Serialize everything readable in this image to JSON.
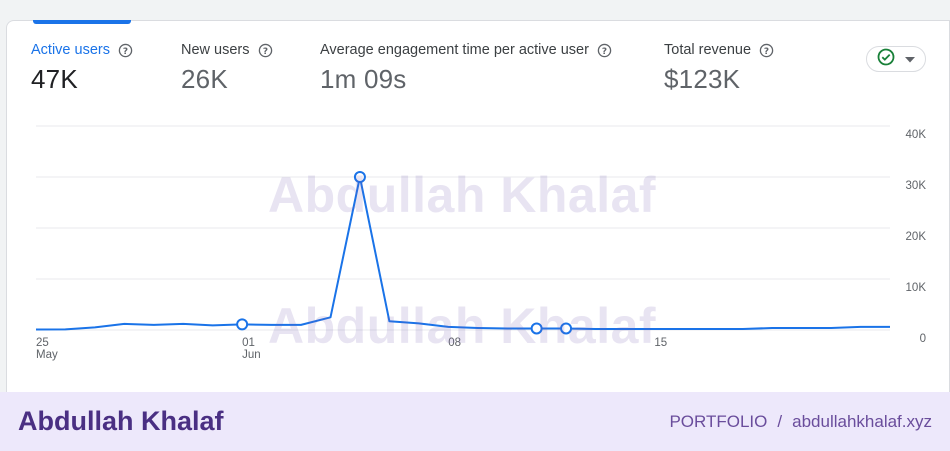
{
  "metrics": [
    {
      "label": "Active users",
      "value": "47K",
      "active": true
    },
    {
      "label": "New users",
      "value": "26K",
      "active": false
    },
    {
      "label": "Average engagement time per active user",
      "value": "1m 09s",
      "active": false
    },
    {
      "label": "Total revenue",
      "value": "$123K",
      "active": false
    }
  ],
  "compare_control": {
    "status_icon": "check-circle-icon",
    "menu_icon": "caret-down-icon"
  },
  "chart_data": {
    "type": "line",
    "x_tick_labels": [
      {
        "day": "25",
        "month": "May"
      },
      {
        "day": "01",
        "month": "Jun"
      },
      {
        "day": "08",
        "month": ""
      },
      {
        "day": "15",
        "month": ""
      }
    ],
    "y_tick_labels": [
      "0",
      "10K",
      "20K",
      "30K",
      "40K"
    ],
    "ylim": [
      0,
      40000
    ],
    "y_axis_position": "right",
    "grid": true,
    "series": [
      {
        "color": "#1a73e8",
        "x": [
          "May 25",
          "May 26",
          "May 27",
          "May 28",
          "May 29",
          "May 30",
          "May 31",
          "Jun 01",
          "Jun 02",
          "Jun 03",
          "Jun 04",
          "Jun 05",
          "Jun 06",
          "Jun 07",
          "Jun 08",
          "Jun 09",
          "Jun 10",
          "Jun 11",
          "Jun 12",
          "Jun 13",
          "Jun 14",
          "Jun 15",
          "Jun 16",
          "Jun 17",
          "Jun 18",
          "Jun 19",
          "Jun 20",
          "Jun 21",
          "Jun 22",
          "Jun 23"
        ],
        "values": [
          100,
          120,
          500,
          1200,
          1000,
          1200,
          900,
          1100,
          1000,
          1000,
          2500,
          30000,
          1700,
          1300,
          600,
          400,
          300,
          300,
          300,
          200,
          200,
          200,
          200,
          200,
          200,
          400,
          400,
          400,
          600,
          600
        ],
        "highlighted_points": [
          "Jun 01",
          "Jun 05",
          "Jun 11",
          "Jun 12"
        ]
      }
    ]
  },
  "watermark": "Abdullah Khalaf",
  "footer": {
    "name": "Abdullah Khalaf",
    "section": "PORTFOLIO",
    "separator": "/",
    "site": "abdullahkhalaf.xyz"
  }
}
